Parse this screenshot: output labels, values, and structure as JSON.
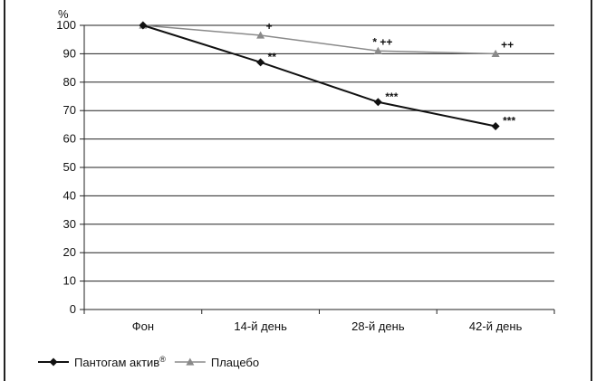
{
  "chart_data": {
    "type": "line",
    "ylabel": "%",
    "ylim": [
      0,
      100
    ],
    "yticks": [
      0,
      10,
      20,
      30,
      40,
      50,
      60,
      70,
      80,
      90,
      100
    ],
    "categories": [
      "Фон",
      "14-й день",
      "28-й день",
      "42-й день"
    ],
    "grid": true,
    "legend_position": "bottom-left",
    "series": [
      {
        "name": "Пантогам актив",
        "name_superscript": "®",
        "marker": "diamond",
        "color": "#111111",
        "values": [
          100,
          87,
          73,
          64.5
        ],
        "annotations": [
          "",
          "**",
          "***",
          "***"
        ]
      },
      {
        "name": "Плацебо",
        "marker": "triangle",
        "color": "#8a8a8a",
        "values": [
          100,
          96.5,
          91,
          90
        ],
        "annotations": [
          "",
          "+",
          "* ++",
          "++"
        ]
      }
    ]
  }
}
